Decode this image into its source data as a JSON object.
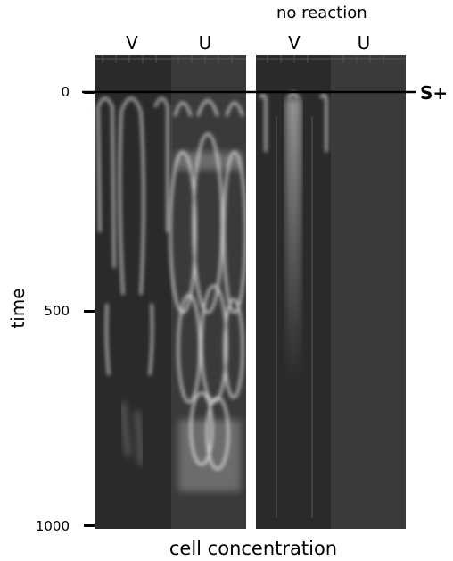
{
  "header": {
    "title": "no reaction"
  },
  "panels": [
    {
      "id": "reaction",
      "columns": [
        "V",
        "U"
      ]
    },
    {
      "id": "no-reaction",
      "columns": [
        "V",
        "U"
      ]
    }
  ],
  "axes": {
    "y_label": "time",
    "x_label": "cell concentration",
    "y_ticks": [
      "0",
      "500",
      "1000"
    ]
  },
  "stimulus_label": "S+",
  "colors": {
    "background": "#ffffff",
    "panel_dark": "#2a2a2a",
    "panel_mid": "#3a3a3a",
    "wave": "#dcdcdc",
    "marker": "#000000"
  }
}
